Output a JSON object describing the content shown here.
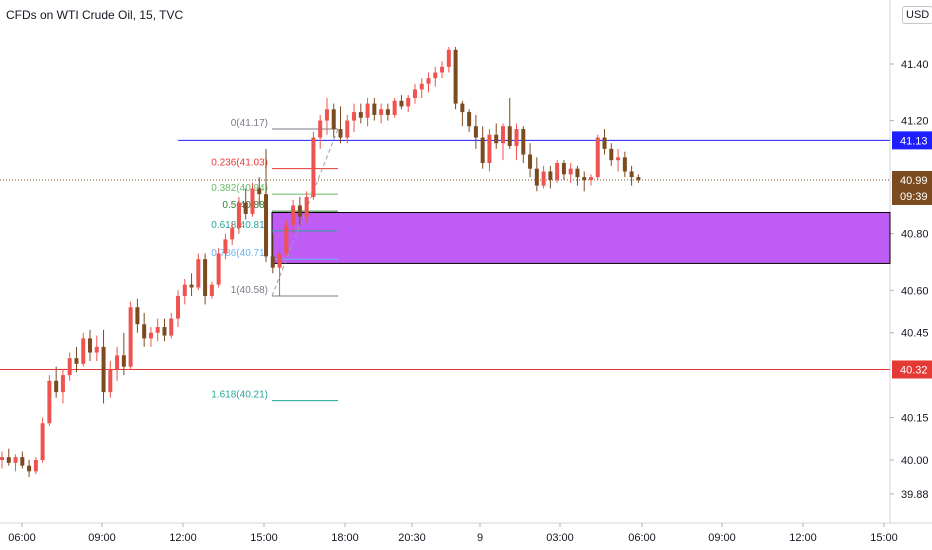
{
  "header": {
    "title": "CFDs on WTI Crude Oil, 15, TVC"
  },
  "currency": "USD",
  "colors": {
    "up": "#ef5350",
    "down": "#7b4a1f",
    "wick": "#555555",
    "blue_line": "#1e1eff",
    "red_line": "#e53935",
    "zone_fill": "#bf5cf5",
    "current_price": "#7b4a1f"
  },
  "chart_data": {
    "type": "candlestick",
    "title": "CFDs on WTI Crude Oil, 15, TVC",
    "xlabel": "",
    "ylabel": "",
    "ylim": [
      39.8,
      41.6
    ],
    "y_ticks": [
      "41.40",
      "41.20",
      "40.80",
      "40.60",
      "40.45",
      "40.15",
      "40.00",
      "39.88"
    ],
    "x_ticks": [
      "06:00",
      "09:00",
      "12:00",
      "15:00",
      "18:00",
      "20:30",
      "9",
      "03:00",
      "06:00",
      "09:00",
      "12:00",
      "15:00"
    ],
    "candles": [
      [
        40.0,
        40.03,
        39.97,
        40.01
      ],
      [
        40.01,
        40.04,
        39.98,
        39.99
      ],
      [
        39.99,
        40.02,
        39.96,
        40.01
      ],
      [
        40.01,
        40.03,
        39.97,
        39.98
      ],
      [
        39.98,
        40.0,
        39.94,
        39.96
      ],
      [
        39.96,
        40.01,
        39.95,
        40.0
      ],
      [
        40.0,
        40.15,
        39.99,
        40.13
      ],
      [
        40.13,
        40.3,
        40.12,
        40.28
      ],
      [
        40.28,
        40.33,
        40.22,
        40.24
      ],
      [
        40.24,
        40.32,
        40.2,
        40.3
      ],
      [
        40.3,
        40.38,
        40.28,
        40.36
      ],
      [
        40.36,
        40.4,
        40.31,
        40.34
      ],
      [
        40.34,
        40.45,
        40.33,
        40.43
      ],
      [
        40.43,
        40.46,
        40.35,
        40.38
      ],
      [
        40.38,
        40.44,
        40.35,
        40.4
      ],
      [
        40.4,
        40.46,
        40.2,
        40.24
      ],
      [
        40.24,
        40.35,
        40.22,
        40.32
      ],
      [
        40.32,
        40.4,
        40.28,
        40.37
      ],
      [
        40.37,
        40.45,
        40.3,
        40.33
      ],
      [
        40.33,
        40.56,
        40.32,
        40.54
      ],
      [
        40.54,
        40.57,
        40.45,
        40.48
      ],
      [
        40.48,
        40.52,
        40.4,
        40.43
      ],
      [
        40.43,
        40.47,
        40.4,
        40.45
      ],
      [
        40.45,
        40.5,
        40.42,
        40.47
      ],
      [
        40.47,
        40.5,
        40.42,
        40.44
      ],
      [
        40.44,
        40.52,
        40.43,
        40.5
      ],
      [
        40.5,
        40.6,
        40.47,
        40.58
      ],
      [
        40.58,
        40.64,
        40.55,
        40.62
      ],
      [
        40.62,
        40.66,
        40.58,
        40.61
      ],
      [
        40.61,
        40.73,
        40.6,
        40.71
      ],
      [
        40.71,
        40.73,
        40.55,
        40.58
      ],
      [
        40.58,
        40.63,
        40.57,
        40.62
      ],
      [
        40.62,
        40.75,
        40.61,
        40.73
      ],
      [
        40.73,
        40.8,
        40.71,
        40.78
      ],
      [
        40.78,
        40.84,
        40.76,
        40.82
      ],
      [
        40.82,
        40.93,
        40.8,
        40.91
      ],
      [
        40.91,
        40.96,
        40.85,
        40.87
      ],
      [
        40.87,
        40.98,
        40.86,
        40.96
      ],
      [
        40.96,
        41.0,
        40.9,
        40.94
      ],
      [
        40.94,
        41.1,
        40.7,
        40.72
      ],
      [
        40.72,
        40.8,
        40.66,
        40.68
      ],
      [
        40.68,
        40.75,
        40.58,
        40.73
      ],
      [
        40.73,
        40.85,
        40.72,
        40.83
      ],
      [
        40.83,
        40.92,
        40.8,
        40.9
      ],
      [
        40.9,
        40.93,
        40.83,
        40.86
      ],
      [
        40.86,
        40.95,
        40.84,
        40.93
      ],
      [
        40.93,
        41.16,
        40.92,
        41.14
      ],
      [
        41.14,
        41.22,
        41.1,
        41.2
      ],
      [
        41.2,
        41.28,
        41.15,
        41.24
      ],
      [
        41.24,
        41.26,
        41.14,
        41.17
      ],
      [
        41.17,
        41.25,
        41.12,
        41.14
      ],
      [
        41.14,
        41.22,
        41.12,
        41.2
      ],
      [
        41.2,
        41.26,
        41.16,
        41.23
      ],
      [
        41.23,
        41.26,
        41.19,
        41.21
      ],
      [
        41.21,
        41.28,
        41.18,
        41.26
      ],
      [
        41.26,
        41.28,
        41.2,
        41.22
      ],
      [
        41.22,
        41.26,
        41.19,
        41.24
      ],
      [
        41.24,
        41.26,
        41.2,
        41.22
      ],
      [
        41.22,
        41.28,
        41.21,
        41.27
      ],
      [
        41.27,
        41.29,
        41.24,
        41.25
      ],
      [
        41.25,
        41.29,
        41.23,
        41.28
      ],
      [
        41.28,
        41.33,
        41.26,
        41.31
      ],
      [
        41.31,
        41.35,
        41.28,
        41.33
      ],
      [
        41.33,
        41.37,
        41.3,
        41.35
      ],
      [
        41.35,
        41.39,
        41.32,
        41.37
      ],
      [
        41.37,
        41.41,
        41.35,
        41.39
      ],
      [
        41.39,
        41.46,
        41.37,
        41.45
      ],
      [
        41.45,
        41.46,
        41.24,
        41.26
      ],
      [
        41.26,
        41.27,
        41.18,
        41.23
      ],
      [
        41.23,
        41.24,
        41.16,
        41.18
      ],
      [
        41.18,
        41.22,
        41.1,
        41.14
      ],
      [
        41.14,
        41.18,
        41.03,
        41.05
      ],
      [
        41.05,
        41.17,
        41.02,
        41.15
      ],
      [
        41.15,
        41.19,
        41.1,
        41.12
      ],
      [
        41.12,
        41.19,
        41.06,
        41.18
      ],
      [
        41.18,
        41.28,
        41.1,
        41.11
      ],
      [
        41.11,
        41.19,
        41.06,
        41.17
      ],
      [
        41.17,
        41.18,
        41.05,
        41.08
      ],
      [
        41.08,
        41.12,
        41.0,
        41.03
      ],
      [
        41.03,
        41.07,
        40.95,
        40.97
      ],
      [
        40.97,
        41.04,
        40.96,
        41.02
      ],
      [
        41.02,
        41.04,
        40.96,
        40.99
      ],
      [
        40.99,
        41.06,
        40.98,
        41.05
      ],
      [
        41.05,
        41.06,
        40.99,
        41.01
      ],
      [
        41.01,
        41.05,
        40.98,
        41.03
      ],
      [
        41.03,
        41.04,
        40.97,
        41.0
      ],
      [
        41.0,
        41.02,
        40.95,
        40.99
      ],
      [
        40.99,
        41.01,
        40.97,
        41.0
      ],
      [
        41.0,
        41.15,
        40.99,
        41.14
      ],
      [
        41.14,
        41.17,
        41.08,
        41.1
      ],
      [
        41.1,
        41.12,
        41.04,
        41.06
      ],
      [
        41.06,
        41.1,
        41.02,
        41.07
      ],
      [
        41.07,
        41.09,
        41.0,
        41.02
      ],
      [
        41.02,
        41.04,
        40.97,
        41.0
      ],
      [
        41.0,
        41.01,
        40.98,
        40.99
      ]
    ],
    "horizontal_lines": [
      {
        "name": "resistance",
        "value": 41.13,
        "label": "41.13",
        "color": "#1e1eff"
      },
      {
        "name": "support",
        "value": 40.32,
        "label": "40.32",
        "color": "#e53935"
      }
    ],
    "zone": {
      "top": 40.875,
      "bottom": 40.695
    },
    "fibonacci": [
      {
        "label": "0(41.17)",
        "value": 41.17,
        "color": "#787b86"
      },
      {
        "label": "0.236(41.03)",
        "value": 41.03,
        "color": "#e53935"
      },
      {
        "label": "0.382(40.94)",
        "value": 40.94,
        "color": "#66bb6a"
      },
      {
        "label": "0.5(40.88)",
        "value": 40.88,
        "color": "#2e7d32"
      },
      {
        "label": "0.618(40.81)",
        "value": 40.81,
        "color": "#26a69a"
      },
      {
        "label": "0.786(40.71)",
        "value": 40.71,
        "color": "#64b5f6"
      },
      {
        "label": "1(40.58)",
        "value": 40.58,
        "color": "#787b86"
      },
      {
        "label": "1.618(40.21)",
        "value": 40.21,
        "color": "#26a69a"
      }
    ],
    "current_price": {
      "value": 40.99,
      "label": "40.99",
      "countdown": "09:39"
    }
  }
}
